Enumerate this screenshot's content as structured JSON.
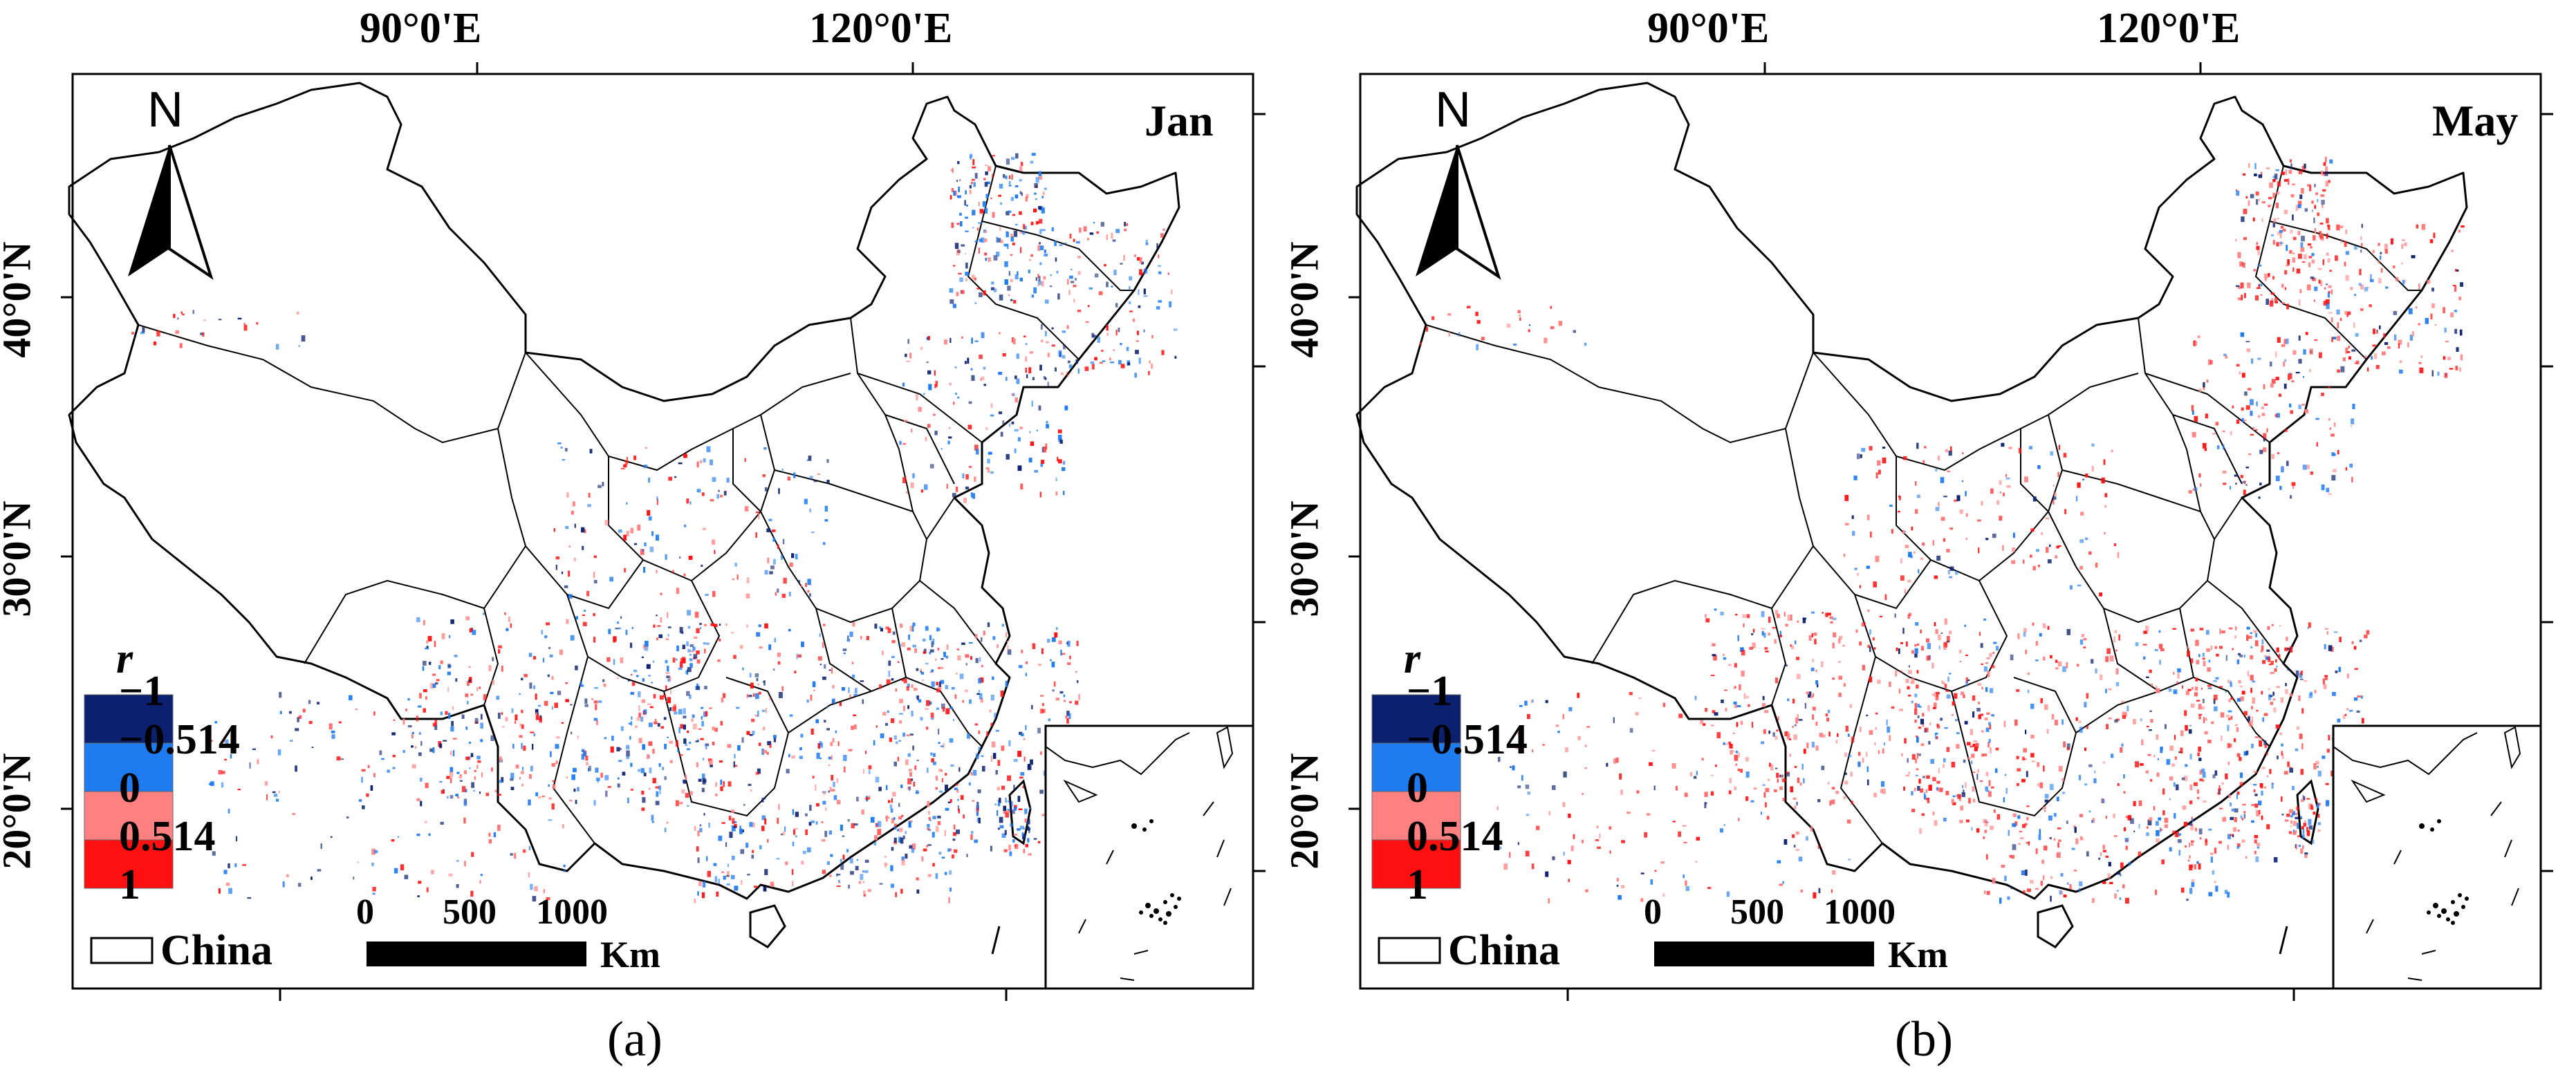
{
  "figure": {
    "axes": {
      "lon_labels": [
        "90°0'E",
        "120°0'E"
      ],
      "lat_labels": [
        "40°0'N",
        "30°0'N",
        "20°0'N"
      ]
    },
    "north_arrow_label": "N",
    "legend": {
      "title": "r",
      "classes": [
        {
          "label": "−1",
          "color": "#0b2170"
        },
        {
          "label": "−0.514",
          "color": "#1e7bf0"
        },
        {
          "label": "0",
          "color": "#ff8080"
        },
        {
          "label": "0.514",
          "color": "#ff1010"
        },
        {
          "label": "1",
          "color": ""
        }
      ],
      "outline_label": "China"
    },
    "scale_bar": {
      "ticks": [
        "0",
        "500",
        "1000"
      ],
      "unit": "Km"
    },
    "colors": {
      "blue_dark": "#0b2170",
      "blue": "#1e7bf0",
      "pink": "#ff8080",
      "red": "#ff1010",
      "frame": "#000000"
    }
  },
  "panels": [
    {
      "id": "a",
      "month": "Jan",
      "caption": "(a)",
      "red_bias": 0.45
    },
    {
      "id": "b",
      "month": "May",
      "caption": "(b)",
      "red_bias": 0.68
    }
  ]
}
